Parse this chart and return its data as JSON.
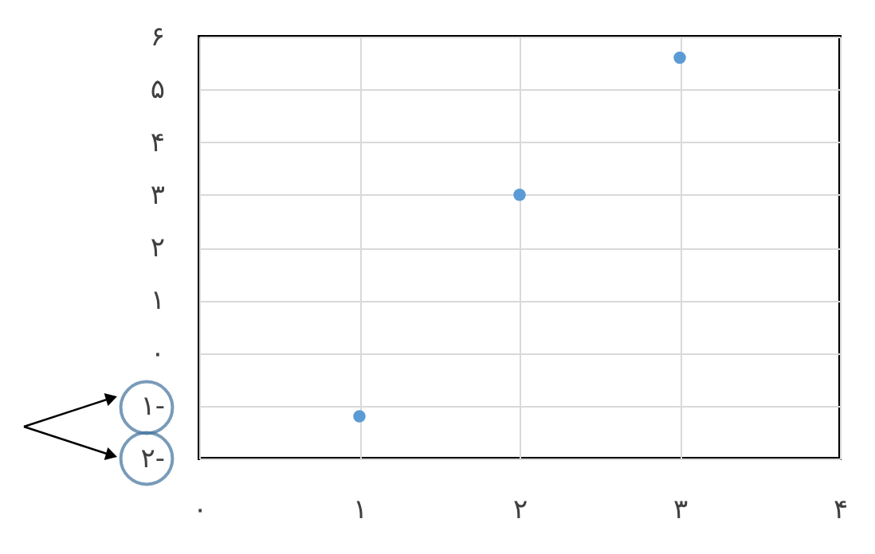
{
  "chart_data": {
    "type": "scatter",
    "x": [
      1,
      2,
      3
    ],
    "series": [
      {
        "color": "#5b9bd5",
        "values": [
          -1.2,
          3.0,
          5.6
        ]
      }
    ],
    "xlim": [
      0,
      4
    ],
    "xticks": [
      {
        "value": 0,
        "label": "۰"
      },
      {
        "value": 1,
        "label": "۱"
      },
      {
        "value": 2,
        "label": "۲"
      },
      {
        "value": 3,
        "label": "۳"
      },
      {
        "value": 4,
        "label": "۴"
      }
    ],
    "ylim": [
      -2,
      6
    ],
    "yticks": [
      {
        "value": -2,
        "label": "۲-"
      },
      {
        "value": -1,
        "label": "۱-"
      },
      {
        "value": 0,
        "label": "۰"
      },
      {
        "value": 1,
        "label": "۱"
      },
      {
        "value": 2,
        "label": "۲"
      },
      {
        "value": 3,
        "label": "۳"
      },
      {
        "value": 4,
        "label": "۴"
      },
      {
        "value": 5,
        "label": "۵"
      },
      {
        "value": 6,
        "label": "۶"
      }
    ],
    "grid": true,
    "marker": "circle",
    "legend": false
  }
}
